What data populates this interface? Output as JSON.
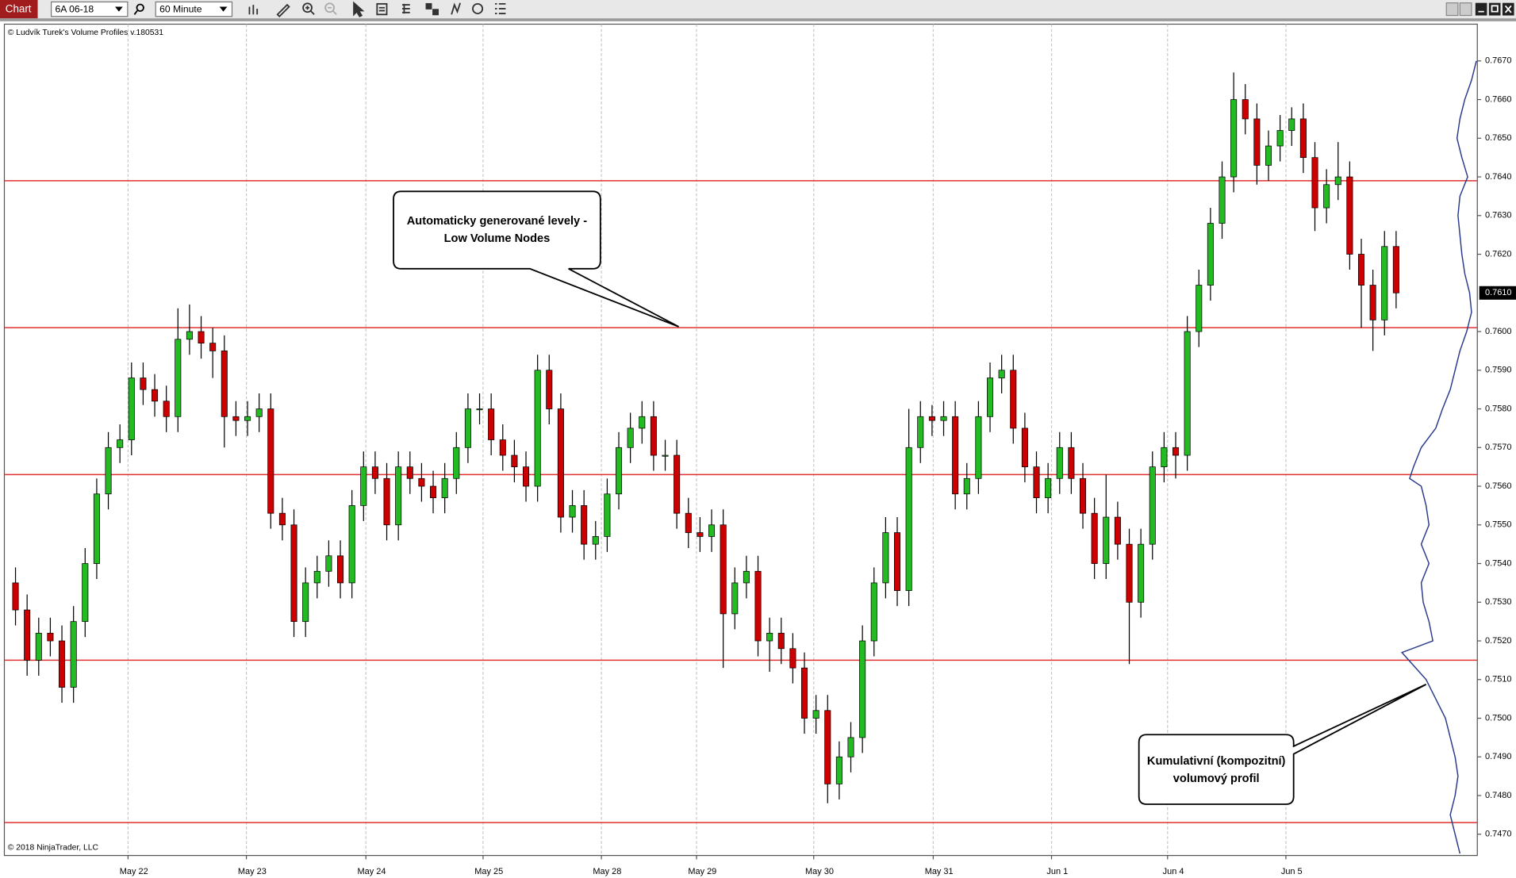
{
  "toolbar": {
    "button": "Chart",
    "instrument": "6A 06-18",
    "interval": "60 Minute"
  },
  "chart_data": {
    "type": "candlestick",
    "title": "© Ludvík Turek's Volume Profiles v.180531",
    "footer": "© 2018 NinjaTrader, LLC",
    "annotations": [
      "Automaticky generované levely -",
      "Low Volume Nodes",
      "Kumulativní (kompozitní)",
      "volumový profil"
    ],
    "up_color": "#22bb22",
    "down_color": "#cc0000",
    "level_color": "#e03030",
    "profile_color": "#2a3a8a",
    "xlim": [
      -0.92,
      126
    ],
    "ylim": [
      0.74645,
      0.76795
    ],
    "xticks": [
      {
        "value": 9.7,
        "label": "May 22"
      },
      {
        "value": 19.9,
        "label": "May 23"
      },
      {
        "value": 30.2,
        "label": "May 24"
      },
      {
        "value": 40.3,
        "label": "May 25"
      },
      {
        "value": 50.5,
        "label": "May 28"
      },
      {
        "value": 58.7,
        "label": "May 29"
      },
      {
        "value": 68.8,
        "label": "May 30"
      },
      {
        "value": 79.1,
        "label": "May 31"
      },
      {
        "value": 89.3,
        "label": "Jun 1"
      },
      {
        "value": 99.3,
        "label": "Jun 4"
      },
      {
        "value": 109.5,
        "label": "Jun 5"
      }
    ],
    "yticks": [
      {
        "value": 0.747,
        "label": "0.7470"
      },
      {
        "value": 0.748,
        "label": "0.7480"
      },
      {
        "value": 0.749,
        "label": "0.7490"
      },
      {
        "value": 0.75,
        "label": "0.7500"
      },
      {
        "value": 0.751,
        "label": "0.7510"
      },
      {
        "value": 0.752,
        "label": "0.7520"
      },
      {
        "value": 0.753,
        "label": "0.7530"
      },
      {
        "value": 0.754,
        "label": "0.7540"
      },
      {
        "value": 0.755,
        "label": "0.7550"
      },
      {
        "value": 0.756,
        "label": "0.7560"
      },
      {
        "value": 0.757,
        "label": "0.7570"
      },
      {
        "value": 0.758,
        "label": "0.7580"
      },
      {
        "value": 0.759,
        "label": "0.7590"
      },
      {
        "value": 0.76,
        "label": "0.7600"
      },
      {
        "value": 0.762,
        "label": "0.7620"
      },
      {
        "value": 0.763,
        "label": "0.7630"
      },
      {
        "value": 0.764,
        "label": "0.7640"
      },
      {
        "value": 0.765,
        "label": "0.7650"
      },
      {
        "value": 0.766,
        "label": "0.7660"
      },
      {
        "value": 0.767,
        "label": "0.7670"
      }
    ],
    "last_price": {
      "value": 0.761,
      "label": "0.7610"
    },
    "levels": [
      0.7639,
      0.7601,
      0.7563,
      0.7515,
      0.7473
    ],
    "x": [
      0,
      1,
      2,
      3,
      4,
      5,
      6,
      7,
      8,
      9,
      10,
      11,
      12,
      13,
      14,
      15,
      16,
      17,
      18,
      19,
      20,
      21,
      22,
      23,
      24,
      25,
      26,
      27,
      28,
      29,
      30,
      31,
      32,
      33,
      34,
      35,
      36,
      37,
      38,
      39,
      40,
      41,
      42,
      43,
      44,
      45,
      46,
      47,
      48,
      49,
      50,
      51,
      52,
      53,
      54,
      55,
      56,
      57,
      58,
      59,
      60,
      61,
      62,
      63,
      64,
      65,
      66,
      67,
      68,
      69,
      70,
      71,
      72,
      73,
      74,
      75,
      76,
      77,
      78,
      79,
      80,
      81,
      82,
      83,
      84,
      85,
      86,
      87,
      88,
      89,
      90,
      91,
      92,
      93,
      94,
      95,
      96,
      97,
      98,
      99,
      100,
      101,
      102,
      103,
      104,
      105,
      106,
      107,
      108,
      109,
      110,
      111,
      112,
      113,
      114,
      115,
      116,
      117,
      118,
      119
    ],
    "open": [
      0.7535,
      0.7528,
      0.7515,
      0.7522,
      0.752,
      0.7508,
      0.7525,
      0.754,
      0.7558,
      0.757,
      0.7572,
      0.7588,
      0.7585,
      0.7582,
      0.7578,
      0.7598,
      0.76,
      0.7597,
      0.7595,
      0.7578,
      0.7577,
      0.7578,
      0.758,
      0.7553,
      0.755,
      0.7525,
      0.7535,
      0.7538,
      0.7542,
      0.7535,
      0.7555,
      0.7565,
      0.7562,
      0.755,
      0.7565,
      0.7562,
      0.756,
      0.7557,
      0.7562,
      0.757,
      0.758,
      0.758,
      0.7572,
      0.7568,
      0.7565,
      0.756,
      0.759,
      0.758,
      0.7552,
      0.7555,
      0.7545,
      0.7547,
      0.7558,
      0.757,
      0.7575,
      0.7578,
      0.7568,
      0.7568,
      0.7553,
      0.7548,
      0.7547,
      0.755,
      0.7527,
      0.7535,
      0.7538,
      0.752,
      0.7522,
      0.7518,
      0.7513,
      0.75,
      0.7502,
      0.7483,
      0.749,
      0.7495,
      0.752,
      0.7535,
      0.7548,
      0.7533,
      0.757,
      0.7578,
      0.7577,
      0.7578,
      0.7558,
      0.7562,
      0.7578,
      0.7588,
      0.759,
      0.7575,
      0.7565,
      0.7557,
      0.7562,
      0.757,
      0.7562,
      0.7553,
      0.754,
      0.7552,
      0.7545,
      0.753,
      0.7545,
      0.7565,
      0.757,
      0.7568,
      0.76,
      0.7612,
      0.7628,
      0.764,
      0.766,
      0.7655,
      0.7643,
      0.7648,
      0.7652,
      0.7655,
      0.7645,
      0.7632,
      0.7638,
      0.764,
      0.762,
      0.7612,
      0.7603,
      0.7622
    ],
    "high": [
      0.7539,
      0.7532,
      0.7526,
      0.7526,
      0.7524,
      0.7529,
      0.7544,
      0.7562,
      0.7574,
      0.7576,
      0.7592,
      0.7592,
      0.7589,
      0.7586,
      0.7606,
      0.7607,
      0.7604,
      0.7601,
      0.7599,
      0.7582,
      0.7582,
      0.7584,
      0.7584,
      0.7557,
      0.7554,
      0.7539,
      0.7542,
      0.7546,
      0.7546,
      0.7559,
      0.7569,
      0.7569,
      0.7566,
      0.7569,
      0.7569,
      0.7566,
      0.7564,
      0.7566,
      0.7574,
      0.7584,
      0.7584,
      0.7584,
      0.7576,
      0.7572,
      0.7569,
      0.7594,
      0.7594,
      0.7584,
      0.7559,
      0.7559,
      0.7551,
      0.7562,
      0.7574,
      0.7579,
      0.7582,
      0.7582,
      0.7572,
      0.7572,
      0.7557,
      0.7552,
      0.7554,
      0.7554,
      0.7539,
      0.7542,
      0.7542,
      0.7526,
      0.7526,
      0.7522,
      0.7517,
      0.7506,
      0.7506,
      0.7494,
      0.7499,
      0.7524,
      0.7539,
      0.7552,
      0.7552,
      0.758,
      0.7582,
      0.7581,
      0.7582,
      0.7582,
      0.7566,
      0.7582,
      0.7592,
      0.7594,
      0.7594,
      0.7579,
      0.7569,
      0.7566,
      0.7574,
      0.7574,
      0.7566,
      0.7557,
      0.7563,
      0.7556,
      0.7549,
      0.7549,
      0.7569,
      0.7574,
      0.7574,
      0.7604,
      0.7616,
      0.7632,
      0.7644,
      0.7667,
      0.7664,
      0.7659,
      0.7652,
      0.7656,
      0.7658,
      0.7659,
      0.7649,
      0.7642,
      0.7649,
      0.7644,
      0.7624,
      0.7616,
      0.7626,
      0.7626
    ],
    "low": [
      0.7524,
      0.7511,
      0.7511,
      0.7516,
      0.7504,
      0.7504,
      0.7521,
      0.7536,
      0.7554,
      0.7566,
      0.7568,
      0.7581,
      0.7578,
      0.7574,
      0.7574,
      0.7594,
      0.7593,
      0.7588,
      0.757,
      0.7573,
      0.7573,
      0.7574,
      0.7549,
      0.7546,
      0.7521,
      0.7521,
      0.7531,
      0.7534,
      0.7531,
      0.7531,
      0.7551,
      0.7558,
      0.7546,
      0.7546,
      0.7558,
      0.7556,
      0.7553,
      0.7553,
      0.7558,
      0.7566,
      0.7576,
      0.7568,
      0.7564,
      0.7561,
      0.7556,
      0.7556,
      0.7576,
      0.7548,
      0.7548,
      0.7541,
      0.7541,
      0.7543,
      0.7554,
      0.7566,
      0.7571,
      0.7564,
      0.7564,
      0.7549,
      0.7544,
      0.7543,
      0.7543,
      0.7513,
      0.7523,
      0.7531,
      0.7516,
      0.7512,
      0.7514,
      0.7509,
      0.7496,
      0.7496,
      0.7478,
      0.7479,
      0.7486,
      0.7491,
      0.7516,
      0.7531,
      0.7529,
      0.7529,
      0.7566,
      0.7573,
      0.7573,
      0.7554,
      0.7554,
      0.7558,
      0.7574,
      0.7584,
      0.7571,
      0.7561,
      0.7553,
      0.7553,
      0.7558,
      0.7558,
      0.7549,
      0.7536,
      0.7536,
      0.7541,
      0.7514,
      0.7526,
      0.7541,
      0.7561,
      0.7562,
      0.7564,
      0.7596,
      0.7608,
      0.7624,
      0.7636,
      0.7651,
      0.7638,
      0.7639,
      0.7644,
      0.7648,
      0.7641,
      0.7626,
      0.7628,
      0.7634,
      0.7616,
      0.7601,
      0.7595,
      0.7599,
      0.7606
    ],
    "close": [
      0.7528,
      0.7515,
      0.7522,
      0.752,
      0.7508,
      0.7525,
      0.754,
      0.7558,
      0.757,
      0.7572,
      0.7588,
      0.7585,
      0.7582,
      0.7578,
      0.7598,
      0.76,
      0.7597,
      0.7595,
      0.7578,
      0.7577,
      0.7578,
      0.758,
      0.7553,
      0.755,
      0.7525,
      0.7535,
      0.7538,
      0.7542,
      0.7535,
      0.7555,
      0.7565,
      0.7562,
      0.755,
      0.7565,
      0.7562,
      0.756,
      0.7557,
      0.7562,
      0.757,
      0.758,
      0.758,
      0.7572,
      0.7568,
      0.7565,
      0.756,
      0.759,
      0.758,
      0.7552,
      0.7555,
      0.7545,
      0.7547,
      0.7558,
      0.757,
      0.7575,
      0.7578,
      0.7568,
      0.7568,
      0.7553,
      0.7548,
      0.7547,
      0.755,
      0.7527,
      0.7535,
      0.7538,
      0.752,
      0.7522,
      0.7518,
      0.7513,
      0.75,
      0.7502,
      0.7483,
      0.749,
      0.7495,
      0.752,
      0.7535,
      0.7548,
      0.7533,
      0.757,
      0.7578,
      0.7577,
      0.7578,
      0.7558,
      0.7562,
      0.7578,
      0.7588,
      0.759,
      0.7575,
      0.7565,
      0.7557,
      0.7562,
      0.757,
      0.7562,
      0.7553,
      0.754,
      0.7552,
      0.7545,
      0.753,
      0.7545,
      0.7565,
      0.757,
      0.7568,
      0.76,
      0.7612,
      0.7628,
      0.764,
      0.766,
      0.7655,
      0.7643,
      0.7648,
      0.7652,
      0.7655,
      0.7645,
      0.7632,
      0.7638,
      0.764,
      0.762,
      0.7612,
      0.7603,
      0.7622,
      0.761
    ],
    "volume_profile": {
      "prices": [
        0.767,
        0.7665,
        0.766,
        0.7655,
        0.765,
        0.7645,
        0.764,
        0.7635,
        0.763,
        0.7625,
        0.762,
        0.7615,
        0.761,
        0.7605,
        0.76,
        0.7595,
        0.759,
        0.7585,
        0.758,
        0.7575,
        0.757,
        0.7565,
        0.7562,
        0.756,
        0.7555,
        0.755,
        0.7545,
        0.754,
        0.7535,
        0.753,
        0.7525,
        0.752,
        0.7517,
        0.751,
        0.7505,
        0.75,
        0.7495,
        0.749,
        0.7485,
        0.748,
        0.7475,
        0.747,
        0.7465
      ],
      "values": [
        1,
        6,
        13,
        18,
        21,
        16,
        10,
        18,
        20,
        18,
        16,
        13,
        8,
        6,
        11,
        18,
        23,
        28,
        36,
        43,
        58,
        66,
        70,
        58,
        53,
        50,
        58,
        50,
        58,
        56,
        50,
        46,
        78,
        53,
        43,
        33,
        28,
        23,
        20,
        23,
        28,
        23,
        18
      ]
    }
  }
}
